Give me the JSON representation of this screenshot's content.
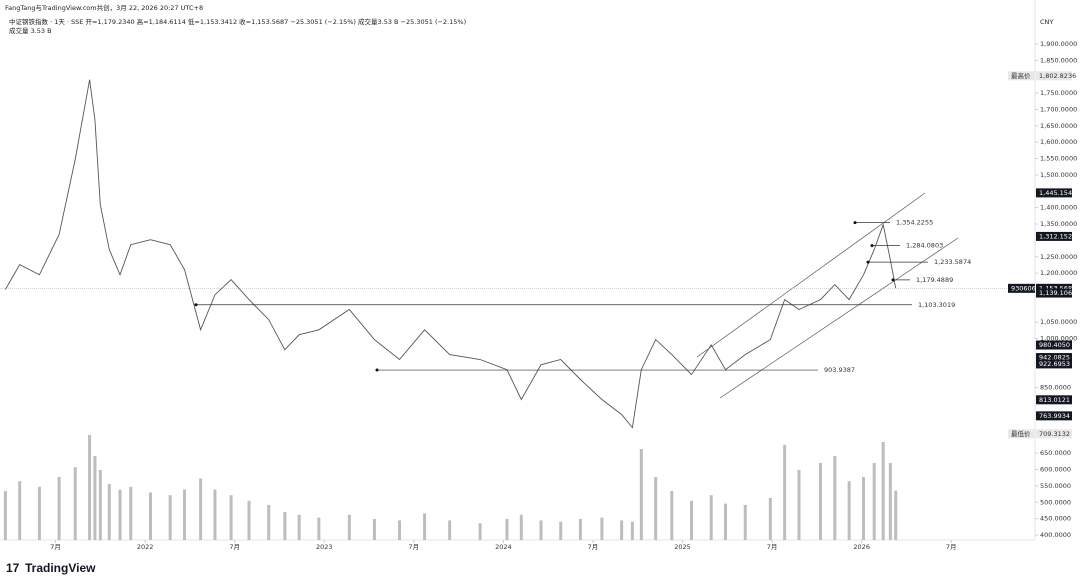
{
  "header": {
    "attribution": "FangTang与TradingView.com共创，3月 22, 2026 20:27 UTC+8",
    "legend": "中证钢铁指数 · 1天 · SSE   开=1,179.2340   高=1,184.6114   低=1,153.3412   收=1,153.5687   −25.3051 (−2.15%)   成交量3.53 B   −25.3051 (−2.15%)",
    "volume_legend": "成交量  3.53 B",
    "currency": "CNY",
    "logo": "TradingView"
  },
  "chart_data": {
    "type": "line",
    "color": "#555555",
    "x": [
      2021.22,
      2021.3,
      2021.41,
      2021.52,
      2021.61,
      2021.69,
      2021.72,
      2021.75,
      2021.8,
      2021.86,
      2021.92,
      2022.03,
      2022.14,
      2022.22,
      2022.31,
      2022.39,
      2022.48,
      2022.58,
      2022.69,
      2022.78,
      2022.86,
      2022.97,
      2023.14,
      2023.28,
      2023.42,
      2023.56,
      2023.7,
      2023.87,
      2024.02,
      2024.1,
      2024.21,
      2024.32,
      2024.43,
      2024.55,
      2024.66,
      2024.72,
      2024.77,
      2024.85,
      2024.94,
      2025.05,
      2025.16,
      2025.24,
      2025.35,
      2025.49,
      2025.57,
      2025.65,
      2025.77,
      2025.85,
      2025.93,
      2026.01,
      2026.07,
      2026.12,
      2026.16,
      2026.19
    ],
    "values": [
      1150,
      1226,
      1195,
      1318,
      1547,
      1791,
      1669,
      1409,
      1272,
      1195,
      1287,
      1302,
      1287,
      1211,
      1027,
      1134,
      1180,
      1119,
      1058,
      966,
      1012,
      1027,
      1089,
      997,
      936,
      1027,
      951,
      936,
      905,
      814,
      920,
      936,
      875,
      814,
      768,
      728,
      905,
      997,
      951,
      890,
      981,
      905,
      951,
      997,
      1119,
      1089,
      1119,
      1165,
      1119,
      1195,
      1272,
      1348,
      1241,
      1154
    ],
    "volume": {
      "name": "成交量",
      "color": "#bdbdbd",
      "values": [
        3.5,
        4.2,
        3.8,
        4.5,
        5.2,
        7.5,
        6.0,
        5.0,
        4.0,
        3.6,
        3.8,
        3.4,
        3.2,
        3.6,
        4.4,
        3.6,
        3.2,
        2.8,
        2.5,
        2.0,
        1.8,
        1.6,
        1.8,
        1.5,
        1.4,
        1.9,
        1.4,
        1.2,
        1.5,
        1.8,
        1.4,
        1.3,
        1.5,
        1.6,
        1.4,
        1.3,
        6.5,
        4.5,
        3.5,
        2.8,
        3.2,
        2.6,
        2.5,
        3.0,
        6.8,
        5.0,
        5.5,
        6.0,
        4.2,
        4.5,
        5.5,
        7.0,
        5.5,
        3.53
      ]
    },
    "xlim": [
      2021.19,
      2026.8
    ],
    "xticks": [
      {
        "value": 2021.5,
        "label": "7月"
      },
      {
        "value": 2022,
        "label": "2022"
      },
      {
        "value": 2022.5,
        "label": "7月"
      },
      {
        "value": 2023,
        "label": "2023"
      },
      {
        "value": 2023.5,
        "label": "7月"
      },
      {
        "value": 2024,
        "label": "2024"
      },
      {
        "value": 2024.5,
        "label": "7月"
      },
      {
        "value": 2025,
        "label": "2025"
      },
      {
        "value": 2025.5,
        "label": "7月"
      },
      {
        "value": 2026,
        "label": "2026"
      },
      {
        "value": 2026.5,
        "label": "7月"
      }
    ],
    "ylim": [
      385,
      1930
    ],
    "yticks": [
      {
        "value": 400,
        "label": "400.0000"
      },
      {
        "value": 450,
        "label": "450.0000"
      },
      {
        "value": 500,
        "label": "500.0000"
      },
      {
        "value": 550,
        "label": "550.0000"
      },
      {
        "value": 600,
        "label": "600.0000"
      },
      {
        "value": 650,
        "label": "650.0000"
      },
      {
        "value": 850,
        "label": "850.0000"
      },
      {
        "value": 1000,
        "label": "1,000.0000"
      },
      {
        "value": 1050,
        "label": "1,050.0000"
      },
      {
        "value": 1200,
        "label": "1,200.0000"
      },
      {
        "value": 1250,
        "label": "1,250.0000"
      },
      {
        "value": 1350,
        "label": "1,350.0000"
      },
      {
        "value": 1400,
        "label": "1,400.0000"
      },
      {
        "value": 1500,
        "label": "1,500.0000"
      },
      {
        "value": 1550,
        "label": "1,550.0000"
      },
      {
        "value": 1600,
        "label": "1,600.0000"
      },
      {
        "value": 1650,
        "label": "1,650.0000"
      },
      {
        "value": 1700,
        "label": "1,700.0000"
      },
      {
        "value": 1750,
        "label": "1,750.0000"
      },
      {
        "value": 1850,
        "label": "1,850.0000"
      },
      {
        "value": 1900,
        "label": "1,900.0000"
      }
    ],
    "levels": [
      {
        "value": 1354.2255,
        "label": "1,354.2255"
      },
      {
        "value": 1284.0803,
        "label": "1,284.0803"
      },
      {
        "value": 1233.5874,
        "label": "1,233.5874"
      },
      {
        "value": 1179.4889,
        "label": "1,179.4889"
      },
      {
        "value": 1103.3019,
        "label": "1,103.3019"
      },
      {
        "value": 903.9387,
        "label": "903.9387"
      }
    ],
    "price_labels": [
      {
        "value": 1802.8236,
        "label": "1,802.8236",
        "tag": "最高价"
      },
      {
        "value": 1445.1544,
        "label": "1,445.1544"
      },
      {
        "value": 1312.152,
        "label": "1,312.1520"
      },
      {
        "value": 1153.5687,
        "label": "1,153.5687",
        "tag": "930606"
      },
      {
        "value": 1139.1069,
        "label": "1,139.1069"
      },
      {
        "value": 980.405,
        "label": "980.4050"
      },
      {
        "value": 942.0825,
        "label": "942.0825"
      },
      {
        "value": 922.6953,
        "label": "922.6953"
      },
      {
        "value": 813.0121,
        "label": "813.0121"
      },
      {
        "value": 763.9934,
        "label": "763.9934"
      },
      {
        "value": 709.3132,
        "label": "709.3132",
        "tag": "最低价"
      }
    ]
  }
}
